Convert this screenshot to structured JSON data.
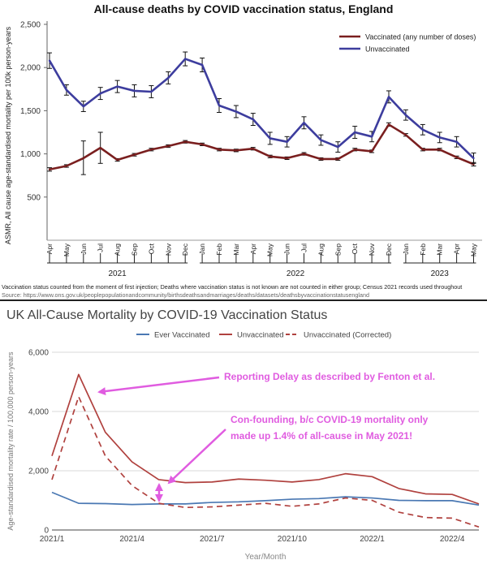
{
  "top": {
    "footnote_line1": "Vaccination status counted from the moment of first injection; Deaths where vaccination status is not known are not counted in either group; Census 2021 records used throughout",
    "footnote_line2": "Source: https://www.ons.gov.uk/peoplepopulationandcommunity/birthsdeathsandmarriages/deaths/datasets/deathsbyvaccinationstatusengland"
  },
  "bottom": {
    "annotation1": "Reporting Delay as described by Fenton et al.",
    "annotation2_line1": "Con-founding, b/c COVID-19 mortality only",
    "annotation2_line2": "made up 1.4% of all-cause in May 2021!",
    "arrow_color": "#e05ce0"
  },
  "chart_data": [
    {
      "type": "line",
      "title": "All-cause deaths by COVID vaccination status, England",
      "ylabel": "ASMR, All cause age-standardised mortality per 100k person-years",
      "ylim": [
        0,
        2500
      ],
      "yticks": [
        500,
        1000,
        1500,
        2000,
        2500
      ],
      "yticklabels": [
        "500",
        "1,000",
        "1,500",
        "2,000",
        "2,500"
      ],
      "grid": false,
      "legend_position": "top-right",
      "categories": [
        "Apr",
        "May",
        "Jun",
        "Jul",
        "Aug",
        "Sep",
        "Oct",
        "Nov",
        "Dec",
        "Jan",
        "Feb",
        "Mar",
        "Apr",
        "May",
        "Jun",
        "Jul",
        "Aug",
        "Sep",
        "Oct",
        "Nov",
        "Dec",
        "Jan",
        "Feb",
        "Mar",
        "Apr",
        "May"
      ],
      "year_groups": [
        {
          "label": "2021",
          "start": 0,
          "end": 8
        },
        {
          "label": "2022",
          "start": 9,
          "end": 20
        },
        {
          "label": "2023",
          "start": 21,
          "end": 25
        }
      ],
      "series": [
        {
          "name": "Vaccinated (any number of doses)",
          "color": "#7a1f1f",
          "values": [
            820,
            860,
            950,
            1070,
            930,
            990,
            1050,
            1090,
            1140,
            1110,
            1050,
            1040,
            1060,
            970,
            950,
            1000,
            940,
            940,
            1050,
            1030,
            1340,
            1220,
            1050,
            1050,
            960,
            880
          ],
          "error_low": [
            800,
            845,
            760,
            890,
            915,
            975,
            1035,
            1075,
            1125,
            1095,
            1035,
            1025,
            1045,
            955,
            935,
            985,
            925,
            925,
            1035,
            1015,
            1320,
            1205,
            1035,
            1035,
            945,
            860
          ],
          "error_high": [
            840,
            875,
            1150,
            1250,
            945,
            1005,
            1065,
            1105,
            1155,
            1125,
            1065,
            1055,
            1075,
            985,
            965,
            1015,
            955,
            955,
            1065,
            1045,
            1360,
            1235,
            1065,
            1065,
            975,
            900
          ]
        },
        {
          "name": "Unvaccinated",
          "color": "#3d3d9e",
          "values": [
            2080,
            1740,
            1550,
            1700,
            1780,
            1730,
            1720,
            1880,
            2100,
            2030,
            1560,
            1490,
            1400,
            1180,
            1140,
            1360,
            1160,
            1080,
            1250,
            1200,
            1660,
            1450,
            1280,
            1190,
            1140,
            950
          ],
          "error_low": [
            1990,
            1680,
            1490,
            1630,
            1710,
            1660,
            1650,
            1810,
            2020,
            1950,
            1480,
            1420,
            1330,
            1110,
            1080,
            1290,
            1100,
            1020,
            1180,
            1140,
            1590,
            1390,
            1220,
            1130,
            1080,
            890
          ],
          "error_high": [
            2170,
            1800,
            1610,
            1770,
            1850,
            1800,
            1790,
            1950,
            2180,
            2110,
            1640,
            1560,
            1470,
            1250,
            1200,
            1430,
            1220,
            1140,
            1320,
            1260,
            1730,
            1510,
            1340,
            1250,
            1200,
            1010
          ]
        }
      ]
    },
    {
      "type": "line",
      "title": "UK All-Cause Mortality by COVID-19 Vaccination Status",
      "xlabel": "Year/Month",
      "ylabel": "Age-standardised mortality rate / 100,000 person-years",
      "ylim": [
        0,
        6000
      ],
      "yticks": [
        0,
        2000,
        4000,
        6000
      ],
      "yticklabels": [
        "0",
        "2,000",
        "4,000",
        "6,000"
      ],
      "xticklabels": [
        "2021/1",
        "2021/4",
        "2021/7",
        "2021/10",
        "2022/1",
        "2022/4"
      ],
      "grid": true,
      "legend_position": "top",
      "x": [
        "2021/1",
        "2021/2",
        "2021/3",
        "2021/4",
        "2021/5",
        "2021/6",
        "2021/7",
        "2021/8",
        "2021/9",
        "2021/10",
        "2021/11",
        "2021/12",
        "2022/1",
        "2022/2",
        "2022/3",
        "2022/4",
        "2022/5"
      ],
      "series": [
        {
          "name": "Ever Vaccinated",
          "color": "#4a78b3",
          "dash": false,
          "values": [
            1270,
            900,
            890,
            860,
            880,
            880,
            930,
            950,
            990,
            1040,
            1060,
            1120,
            1080,
            1000,
            990,
            990,
            840
          ]
        },
        {
          "name": "Unvaccinated",
          "color": "#b0413e",
          "dash": false,
          "values": [
            2500,
            5250,
            3300,
            2300,
            1700,
            1600,
            1620,
            1720,
            1680,
            1620,
            1700,
            1900,
            1800,
            1400,
            1220,
            1200,
            880
          ]
        },
        {
          "name": "Unvaccinated (Corrected)",
          "color": "#b0413e",
          "dash": true,
          "values": [
            1700,
            4500,
            2500,
            1500,
            900,
            760,
            780,
            840,
            900,
            800,
            880,
            1080,
            1000,
            600,
            420,
            400,
            100
          ]
        }
      ]
    }
  ]
}
